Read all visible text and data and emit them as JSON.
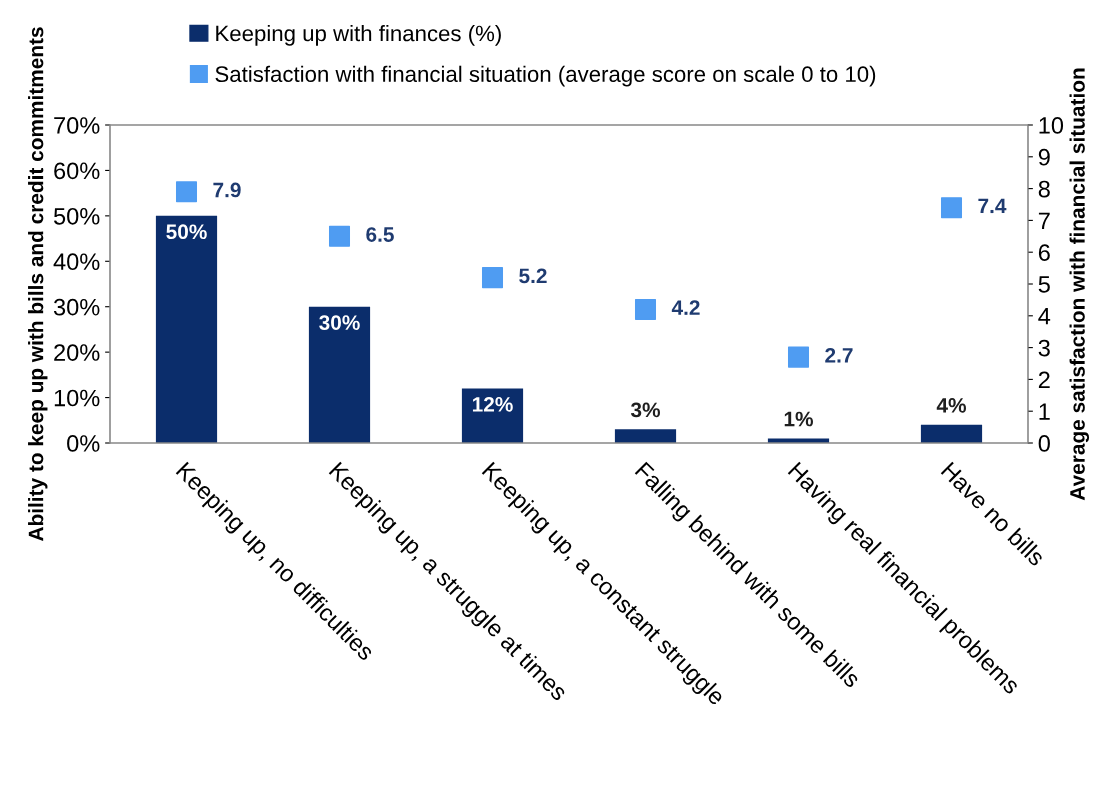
{
  "chart_data": {
    "type": "bar",
    "categories": [
      "Keeping up, no difficulties",
      "Keeping up, a struggle at times",
      "Keeping up, a constant struggle",
      "Falling behind with some bills",
      "Having real financial problems",
      "Have no bills"
    ],
    "series": [
      {
        "name": "Keeping up with finances (%)",
        "color": "#0b2d6b",
        "values": [
          50,
          30,
          12,
          3,
          1,
          4
        ],
        "value_labels": [
          "50%",
          "30%",
          "12%",
          "3%",
          "1%",
          "4%"
        ]
      },
      {
        "name": "Satisfaction with financial situation (average score on scale 0 to 10)",
        "type": "scatter",
        "axis": "y2",
        "color": "#4f9cf2",
        "marker": "square",
        "values": [
          7.9,
          6.5,
          5.2,
          4.2,
          2.7,
          7.4
        ],
        "value_labels": [
          "7.9",
          "6.5",
          "5.2",
          "4.2",
          "2.7",
          "7.4"
        ]
      }
    ],
    "ylabel": "Ability to keep up with bills and credit commitments",
    "y2label": "Average satisfaction with financial situation",
    "ylim": [
      0,
      70
    ],
    "yticks": [
      {
        "value": 0,
        "label": "0%"
      },
      {
        "value": 10,
        "label": "10%"
      },
      {
        "value": 20,
        "label": "20%"
      },
      {
        "value": 30,
        "label": "30%"
      },
      {
        "value": 40,
        "label": "40%"
      },
      {
        "value": 50,
        "label": "50%"
      },
      {
        "value": 60,
        "label": "60%"
      },
      {
        "value": 70,
        "label": "70%"
      }
    ],
    "y2lim": [
      0,
      10
    ],
    "y2ticks": [
      0,
      1,
      2,
      3,
      4,
      5,
      6,
      7,
      8,
      9,
      10
    ],
    "legend": "top",
    "grid": false
  }
}
